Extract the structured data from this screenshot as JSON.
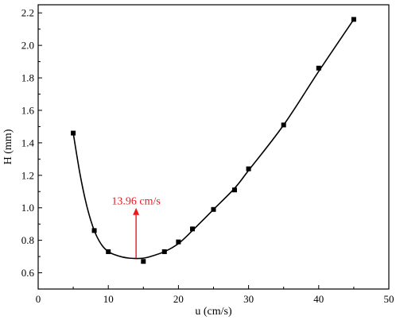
{
  "chart_data": {
    "type": "scatter",
    "title": "",
    "xlabel": "u (cm/s)",
    "ylabel": "H (mm)",
    "xlim": [
      0,
      50
    ],
    "ylim": [
      0.5,
      2.25
    ],
    "xticks": [
      0,
      10,
      20,
      30,
      40,
      50
    ],
    "yticks": [
      0.6,
      0.8,
      1.0,
      1.2,
      1.4,
      1.6,
      1.8,
      2.0,
      2.2
    ],
    "xtick_labels": [
      "0",
      "10",
      "20",
      "30",
      "40",
      "50"
    ],
    "ytick_labels": [
      "0.6",
      "0.8",
      "1.0",
      "1.2",
      "1.4",
      "1.6",
      "1.8",
      "2.0",
      "2.2"
    ],
    "grid": false,
    "legend": "none",
    "series": [
      {
        "x": [
          5,
          8,
          10,
          15,
          18,
          20,
          22,
          25,
          28,
          30,
          35,
          40,
          45
        ],
        "y": [
          1.46,
          0.86,
          0.73,
          0.67,
          0.73,
          0.79,
          0.87,
          0.99,
          1.11,
          1.24,
          1.51,
          1.86,
          2.16
        ],
        "color": "#000000",
        "marker": "square"
      }
    ],
    "fit_curve": {
      "x": [
        5,
        6,
        7,
        8,
        9,
        10,
        11,
        12,
        13,
        13.96,
        15,
        16,
        18,
        20,
        22,
        25,
        28,
        30,
        35,
        40,
        45
      ],
      "y": [
        1.46,
        1.2,
        1.0,
        0.86,
        0.775,
        0.73,
        0.71,
        0.697,
        0.69,
        0.688,
        0.69,
        0.7,
        0.73,
        0.78,
        0.86,
        0.99,
        1.12,
        1.23,
        1.51,
        1.84,
        2.16
      ],
      "color": "#000000"
    },
    "annotation": {
      "text": "13.96 cm/s",
      "x": 13.96,
      "y_start": 0.69,
      "y_end": 1.0,
      "color": "#e8191f"
    }
  }
}
